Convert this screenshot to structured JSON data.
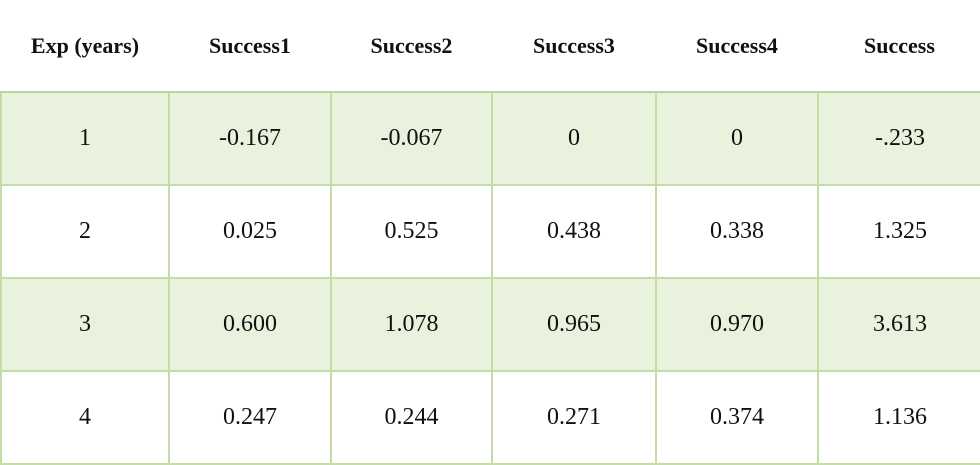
{
  "table": {
    "headers": [
      "Exp (years)",
      "Success1",
      "Success2",
      "Success3",
      "Success4",
      "Success"
    ],
    "rows": [
      [
        "1",
        "-0.167",
        "-0.067",
        "0",
        "0",
        "-.233"
      ],
      [
        "2",
        "0.025",
        "0.525",
        "0.438",
        "0.338",
        "1.325"
      ],
      [
        "3",
        "0.600",
        "1.078",
        "0.965",
        "0.970",
        "3.613"
      ],
      [
        "4",
        "0.247",
        "0.244",
        "0.271",
        "0.374",
        "1.136"
      ]
    ]
  },
  "colors": {
    "shaded_row": "#e9f2dc",
    "grid_line": "#c4dca6"
  }
}
